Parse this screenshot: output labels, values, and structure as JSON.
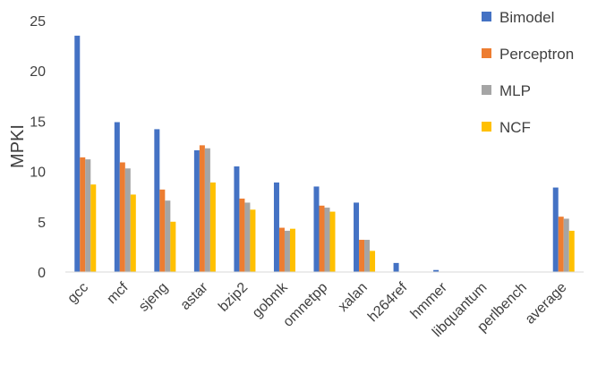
{
  "chart_data": {
    "type": "bar",
    "ylabel": "MPKI",
    "xlabel": "",
    "ylim": [
      0,
      25
    ],
    "yticks": [
      0,
      5,
      10,
      15,
      20,
      25
    ],
    "grid": false,
    "legend_position": "right",
    "categories": [
      "gcc",
      "mcf",
      "sjeng",
      "astar",
      "bzip2",
      "gobmk",
      "omnetpp",
      "xalan",
      "h264ref",
      "hmmer",
      "libquantum",
      "perlbench",
      "average"
    ],
    "series": [
      {
        "name": "Bimodel",
        "color": "#4472C4",
        "values": [
          23.5,
          14.9,
          14.2,
          12.1,
          10.5,
          8.9,
          8.5,
          6.9,
          0.9,
          0.2,
          0,
          0,
          8.4
        ]
      },
      {
        "name": "Perceptron",
        "color": "#ED7D31",
        "values": [
          11.4,
          10.9,
          8.2,
          12.6,
          7.3,
          4.4,
          6.6,
          3.2,
          0,
          0,
          0,
          0,
          5.5
        ]
      },
      {
        "name": "MLP",
        "color": "#A5A5A5",
        "values": [
          11.2,
          10.3,
          7.1,
          12.3,
          6.9,
          4.1,
          6.4,
          3.2,
          0,
          0,
          0,
          0,
          5.3
        ]
      },
      {
        "name": "NCF",
        "color": "#FFC000",
        "values": [
          8.7,
          7.7,
          5.0,
          8.9,
          6.2,
          4.3,
          6.0,
          2.1,
          0,
          0,
          0,
          0,
          4.1
        ]
      }
    ]
  }
}
